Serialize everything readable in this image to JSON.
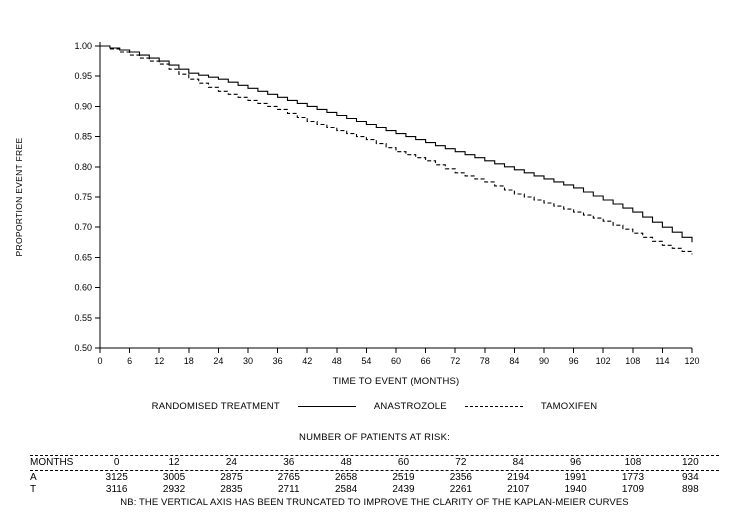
{
  "chart_data": {
    "type": "line",
    "subtype": "kaplan-meier-step",
    "title": "",
    "xlabel": "TIME TO EVENT (MONTHS)",
    "ylabel": "PROPORTION EVENT FREE",
    "xlim": [
      0,
      120
    ],
    "ylim": [
      0.5,
      1.0
    ],
    "x_tick_step": 6,
    "y_tick_step": 0.05,
    "grid": false,
    "legend_title": "RANDOMISED TREATMENT",
    "legend_position": "bottom",
    "x": [
      0,
      6,
      12,
      18,
      24,
      30,
      36,
      42,
      48,
      54,
      60,
      66,
      72,
      78,
      84,
      90,
      96,
      102,
      108,
      114,
      120
    ],
    "series": [
      {
        "name": "ANASTROZOLE",
        "line_style": "solid",
        "color": "#000000",
        "values": [
          1.0,
          0.99,
          0.975,
          0.955,
          0.945,
          0.93,
          0.915,
          0.9,
          0.885,
          0.87,
          0.855,
          0.84,
          0.825,
          0.81,
          0.795,
          0.78,
          0.765,
          0.745,
          0.725,
          0.7,
          0.675
        ]
      },
      {
        "name": "TAMOXIFEN",
        "line_style": "dashed",
        "color": "#000000",
        "values": [
          1.0,
          0.985,
          0.97,
          0.945,
          0.925,
          0.91,
          0.895,
          0.875,
          0.86,
          0.845,
          0.825,
          0.81,
          0.79,
          0.775,
          0.755,
          0.74,
          0.725,
          0.71,
          0.69,
          0.67,
          0.655
        ]
      }
    ]
  },
  "risk_table": {
    "title": "NUMBER OF PATIENTS AT RISK:",
    "months_label": "MONTHS",
    "months": [
      0,
      12,
      24,
      36,
      48,
      60,
      72,
      84,
      96,
      108,
      120
    ],
    "rows": [
      {
        "label": "A",
        "values": [
          3125,
          3005,
          2875,
          2765,
          2658,
          2519,
          2356,
          2194,
          1991,
          1773,
          934
        ]
      },
      {
        "label": "T",
        "values": [
          3116,
          2932,
          2835,
          2711,
          2584,
          2439,
          2261,
          2107,
          1940,
          1709,
          898
        ]
      }
    ]
  },
  "footnote": "NB: THE VERTICAL AXIS HAS BEEN TRUNCATED TO IMPROVE THE CLARITY OF THE KAPLAN-MEIER CURVES"
}
